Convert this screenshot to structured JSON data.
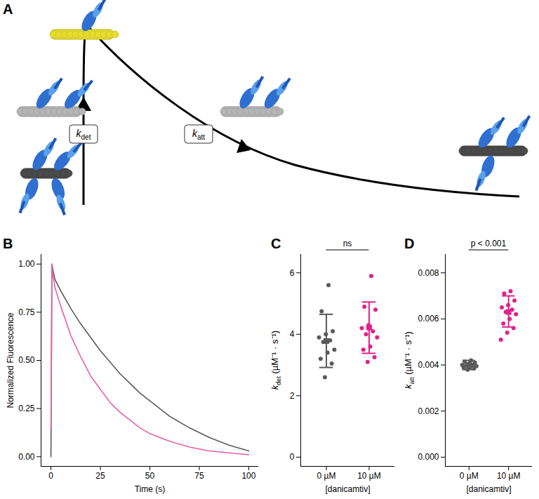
{
  "diagram": {
    "title": "A",
    "labels": [
      {
        "symbol": "k",
        "subscript": "det"
      },
      {
        "symbol": "k",
        "subscript": "att"
      }
    ]
  },
  "chart_data": [
    {
      "type": "line",
      "title": "B",
      "x_label": "Time (s)",
      "y_label": "Normalized Fluorescence",
      "x": [
        0,
        0.5,
        1,
        2,
        5,
        10,
        15,
        20,
        25,
        30,
        35,
        40,
        45,
        50,
        60,
        70,
        80,
        90,
        100
      ],
      "series": [
        {
          "color": "#5a5a5a",
          "values": [
            0,
            1.0,
            0.97,
            0.92,
            0.86,
            0.77,
            0.69,
            0.62,
            0.55,
            0.49,
            0.43,
            0.38,
            0.33,
            0.29,
            0.21,
            0.15,
            0.1,
            0.06,
            0.03
          ]
        },
        {
          "color": "#e85fa6",
          "values": [
            0.15,
            1.0,
            0.95,
            0.88,
            0.78,
            0.63,
            0.52,
            0.42,
            0.35,
            0.28,
            0.23,
            0.19,
            0.15,
            0.12,
            0.08,
            0.05,
            0.03,
            0.02,
            0.01
          ]
        }
      ],
      "xlim": [
        -5,
        105
      ],
      "ylim": [
        -0.05,
        1.05
      ],
      "xticks": [
        0,
        25,
        50,
        75,
        100
      ],
      "yticks": [
        {
          "value": 0,
          "label": "0.00"
        },
        {
          "value": 0.25,
          "label": "0.25"
        },
        {
          "value": 0.5,
          "label": "0.50"
        },
        {
          "value": 0.75,
          "label": "0.75"
        },
        {
          "value": 1,
          "label": "1.00"
        }
      ]
    },
    {
      "type": "scatter",
      "title": "C",
      "x_label": "[danicamtiv]",
      "y_label": {
        "symbol": "k",
        "subscript": "det",
        "unit": "(µM⁻¹ · s⁻¹)"
      },
      "categories": [
        "0 µM",
        "10 µM"
      ],
      "groups": [
        {
          "color": "#5a5a5a",
          "values": [
            5.6,
            4.75,
            4.1,
            4.0,
            3.9,
            3.8,
            3.75,
            3.5,
            3.4,
            3.2,
            3.05,
            2.6
          ],
          "mean": 3.78,
          "error_low": 2.92,
          "error_high": 4.65
        },
        {
          "color": "#e0228b",
          "values": [
            5.9,
            4.9,
            4.8,
            4.3,
            4.2,
            4.1,
            4.0,
            3.9,
            3.6,
            3.5,
            3.25,
            3.1
          ],
          "mean": 4.22,
          "error_low": 3.38,
          "error_high": 5.05
        }
      ],
      "ylim": [
        -0.3,
        6.6
      ],
      "yticks": [
        0,
        2,
        4,
        6
      ],
      "annotations": [
        {
          "text": "ns"
        }
      ]
    },
    {
      "type": "scatter",
      "title": "D",
      "x_label": "[danicamtiv]",
      "y_label": {
        "symbol": "k",
        "subscript": "att",
        "unit": "(µM⁻¹ · s⁻¹)"
      },
      "categories": [
        "0 µM",
        "10 µM"
      ],
      "groups": [
        {
          "color": "#5a5a5a",
          "values": [
            0.0042,
            0.00415,
            0.0041,
            0.00405,
            0.004,
            0.004,
            0.00398,
            0.00395,
            0.0039,
            0.00388,
            0.00385,
            0.0038
          ],
          "mean": 0.004,
          "error_low": 0.0038,
          "error_high": 0.0042
        },
        {
          "color": "#e0228b",
          "values": [
            0.0072,
            0.0071,
            0.0068,
            0.0066,
            0.0065,
            0.0064,
            0.0063,
            0.0062,
            0.006,
            0.0058,
            0.0056,
            0.0054,
            0.0051
          ],
          "mean": 0.0063,
          "error_low": 0.00565,
          "error_high": 0.007
        }
      ],
      "ylim": [
        -0.0004,
        0.0088
      ],
      "yticks": [
        {
          "value": 0,
          "label": "0.000"
        },
        {
          "value": 0.002,
          "label": "0.002"
        },
        {
          "value": 0.004,
          "label": "0.004"
        },
        {
          "value": 0.006,
          "label": "0.006"
        },
        {
          "value": 0.008,
          "label": "0.008"
        }
      ],
      "annotations": [
        {
          "text": "p < 0.001"
        }
      ]
    }
  ]
}
